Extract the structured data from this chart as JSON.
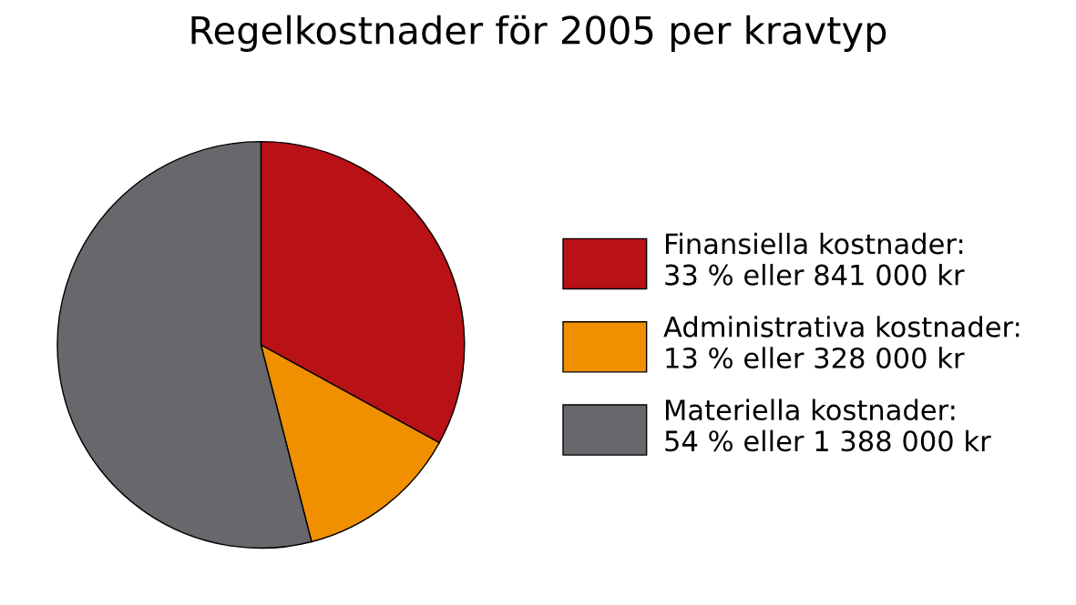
{
  "chart_data": {
    "type": "pie",
    "title": "Regelkostnader för 2005 per kravtyp",
    "categories": [
      "Finansiella kostnader:\n33 % eller 841 000 kr",
      "Administrativa kostnader:\n13 % eller 328 000 kr",
      "Materiella kostnader:\n54 % eller 1 388 000 kr"
    ],
    "values": [
      33,
      13,
      54
    ],
    "colors": [
      "#b81116",
      "#f09000",
      "#68676b"
    ],
    "legend": "right"
  }
}
